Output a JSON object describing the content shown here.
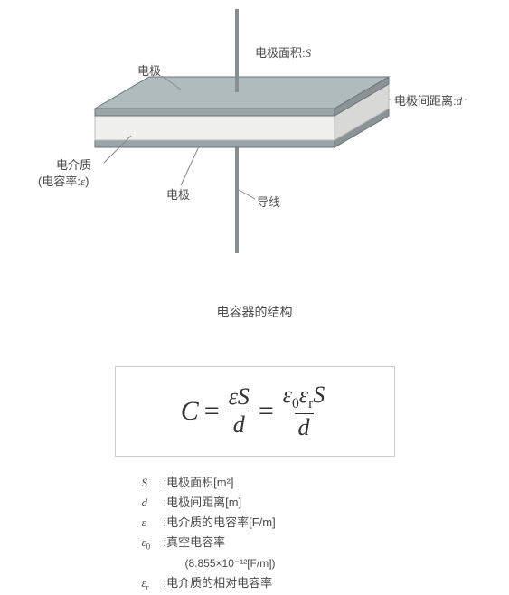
{
  "diagram": {
    "labels": {
      "top_electrode": "电极",
      "area": "电极面积:",
      "area_sym": "S",
      "distance": "电极间距离:",
      "distance_sym": "d",
      "dielectric_line1": "电介质",
      "dielectric_line2_pre": "(电容率:",
      "dielectric_sym": "ε",
      "dielectric_line2_post": ")",
      "bottom_electrode": "电极",
      "wire": "导线"
    },
    "colors": {
      "plate_top": "#9aa5a8",
      "plate_top_light": "#b0bbbd",
      "plate_side": "#8a9497",
      "dielectric_front": "#f0f1ef",
      "dielectric_side": "#d8d9d6",
      "wire": "#888f91",
      "outline": "#6b7476",
      "leader": "#888888",
      "dash": "#999999"
    },
    "caption": "电容器的结构"
  },
  "formula": {
    "C": "C",
    "eq": "=",
    "eps": "ε",
    "S": "S",
    "d": "d",
    "eps0": "ε",
    "sub0": "0",
    "epsr": "ε",
    "subr": "r"
  },
  "definitions": [
    {
      "sym": "S",
      "sub": "",
      "text": ":电极面积[m²]"
    },
    {
      "sym": "d",
      "sub": "",
      "text": ":电极间距离[m]"
    },
    {
      "sym": "ε",
      "sub": "",
      "text": ":电介质的电容率[F/m]"
    },
    {
      "sym": "ε",
      "sub": "0",
      "text": ":真空电容率"
    },
    {
      "sym": "",
      "sub": "",
      "text": "(8.855×10⁻¹²[F/m])",
      "indent": true
    },
    {
      "sym": "ε",
      "sub": "r",
      "text": ":电介质的相对电容率"
    }
  ]
}
